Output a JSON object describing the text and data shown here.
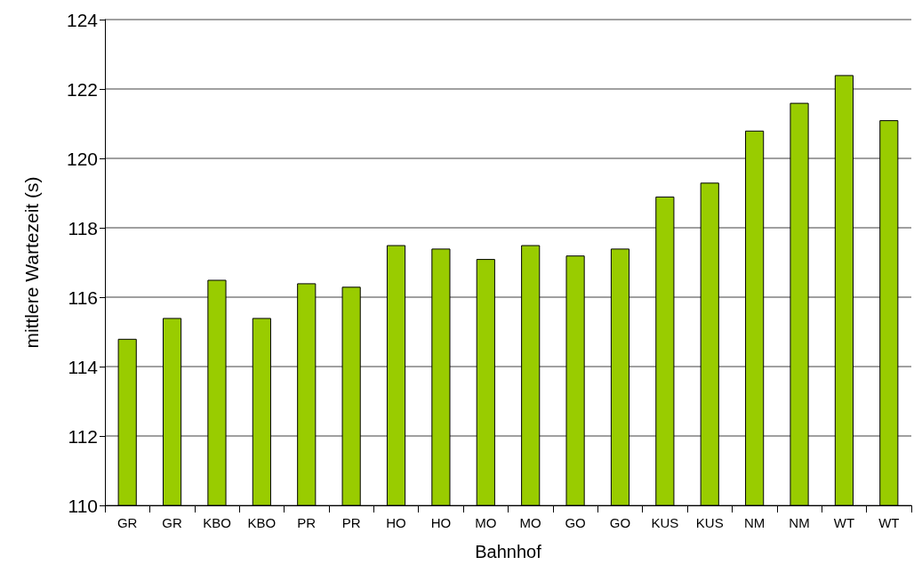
{
  "chart_data": {
    "type": "bar",
    "xlabel": "Bahnhof",
    "ylabel": "mittlere Wartezeit (s)",
    "categories": [
      "GR",
      "GR",
      "KBO",
      "KBO",
      "PR",
      "PR",
      "HO",
      "HO",
      "MO",
      "MO",
      "GO",
      "GO",
      "KUS",
      "KUS",
      "NM",
      "NM",
      "WT",
      "WT"
    ],
    "values": [
      114.8,
      115.4,
      116.5,
      115.4,
      116.4,
      116.3,
      117.5,
      117.4,
      117.1,
      117.5,
      117.2,
      117.4,
      118.9,
      119.3,
      120.8,
      121.6,
      122.4,
      121.1
    ],
    "color": "#99cc00",
    "ylim": [
      110,
      124
    ],
    "yticks": [
      110,
      112,
      114,
      116,
      118,
      120,
      122,
      124
    ],
    "grid": "y"
  }
}
